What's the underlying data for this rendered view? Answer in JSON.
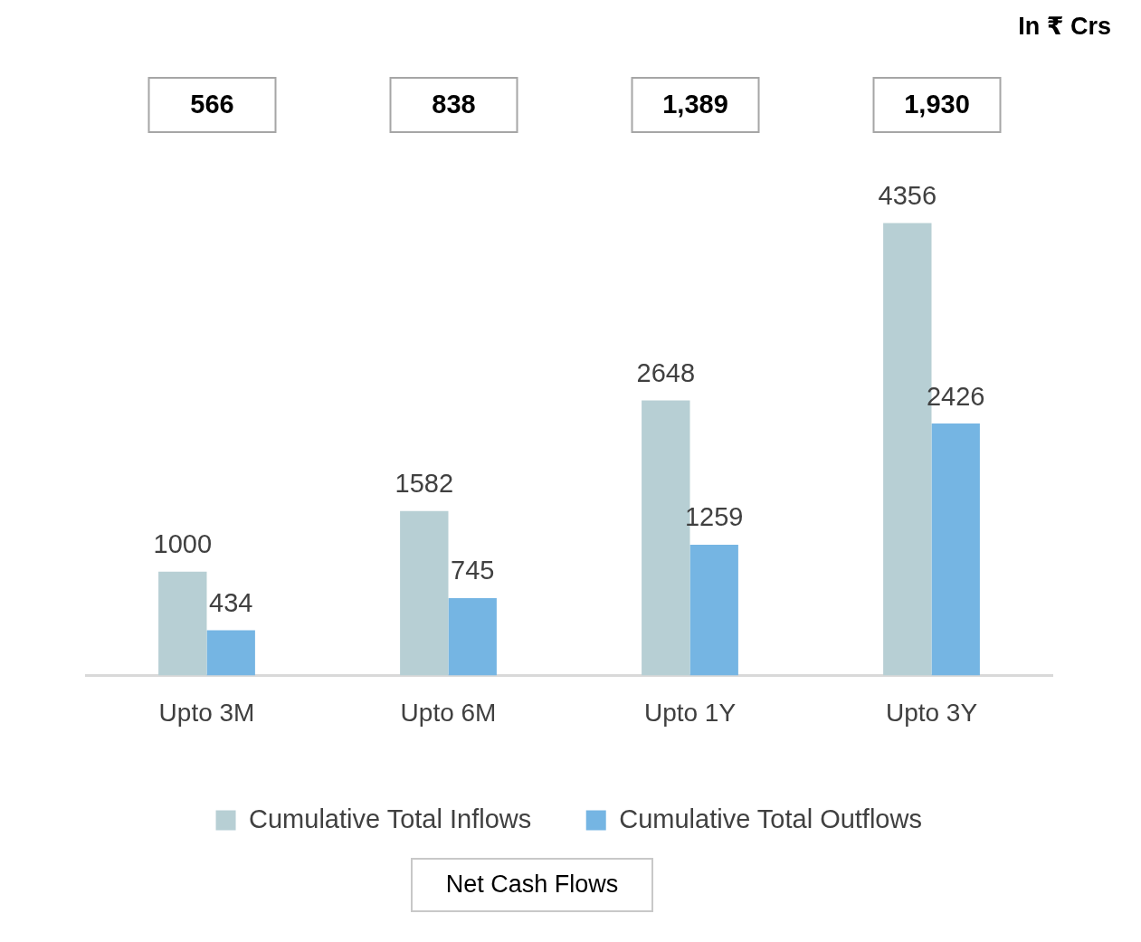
{
  "chart_data": {
    "type": "bar",
    "categories": [
      "Upto 3M",
      "Upto 6M",
      "Upto 1Y",
      "Upto 3Y"
    ],
    "series": [
      {
        "name": "Cumulative Total Inflows",
        "color": "#b7cfd4",
        "values": [
          1000,
          1582,
          2648,
          4356
        ]
      },
      {
        "name": "Cumulative Total Outflows",
        "color": "#75b5e3",
        "values": [
          434,
          745,
          1259,
          2426
        ]
      }
    ],
    "data_labels": true,
    "legend": "bottom",
    "grid": false,
    "annotations": [
      "In ₹ Crs",
      "566",
      "838",
      "1,389",
      "1,930",
      "Net Cash Flows"
    ]
  }
}
